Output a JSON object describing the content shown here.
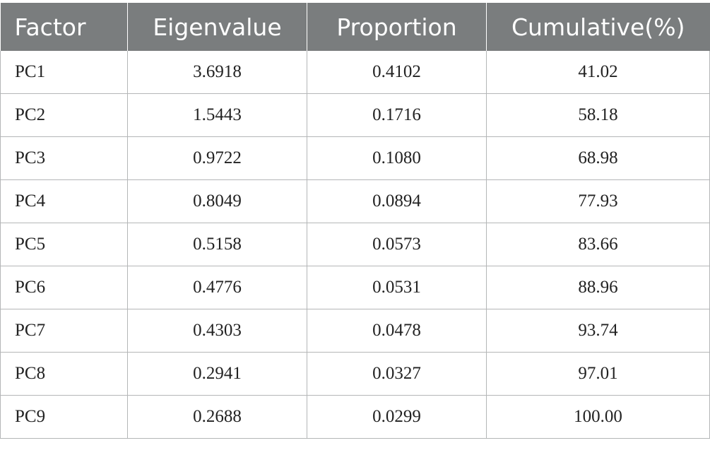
{
  "chart_data": {
    "type": "table",
    "columns": [
      "Factor",
      "Eigenvalue",
      "Proportion",
      "Cumulative(%)"
    ],
    "rows": [
      [
        "PC1",
        "3.6918",
        "0.4102",
        "41.02"
      ],
      [
        "PC2",
        "1.5443",
        "0.1716",
        "58.18"
      ],
      [
        "PC3",
        "0.9722",
        "0.1080",
        "68.98"
      ],
      [
        "PC4",
        "0.8049",
        "0.0894",
        "77.93"
      ],
      [
        "PC5",
        "0.5158",
        "0.0573",
        "83.66"
      ],
      [
        "PC6",
        "0.4776",
        "0.0531",
        "88.96"
      ],
      [
        "PC7",
        "0.4303",
        "0.0478",
        "93.74"
      ],
      [
        "PC8",
        "0.2941",
        "0.0327",
        "97.01"
      ],
      [
        "PC9",
        "0.2688",
        "0.0299",
        "100.00"
      ]
    ],
    "colors": {
      "header_bg": "#7a7d7e",
      "header_text": "#ffffff",
      "border": "#b4b6b7"
    }
  }
}
